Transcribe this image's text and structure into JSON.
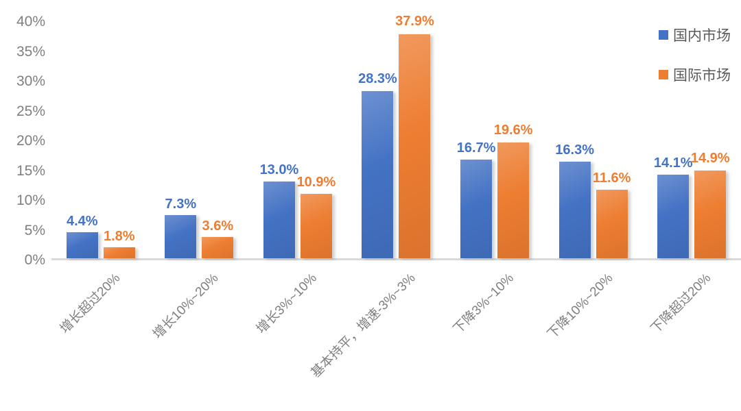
{
  "chart_data": {
    "type": "bar",
    "title": "",
    "categories": [
      "增长超过20%",
      "增长10%~20%",
      "增长3%~10%",
      "基本持平，增速-3%~3%",
      "下降3%~10%",
      "下降10%~20%",
      "下降超过20%"
    ],
    "series": [
      {
        "name": "国内市场",
        "color": "#4472C4",
        "values": [
          4.4,
          7.3,
          13.0,
          28.3,
          16.7,
          16.3,
          14.1
        ],
        "labels": [
          "4.4%",
          "7.3%",
          "13.0%",
          "28.3%",
          "16.7%",
          "16.3%",
          "14.1%"
        ]
      },
      {
        "name": "国际市场",
        "color": "#ED7D31",
        "values": [
          1.8,
          3.6,
          10.9,
          37.9,
          19.6,
          11.6,
          14.9
        ],
        "labels": [
          "1.8%",
          "3.6%",
          "10.9%",
          "37.9%",
          "19.6%",
          "11.6%",
          "14.9%"
        ]
      }
    ],
    "xlabel": "",
    "ylabel": "",
    "ylim": [
      0,
      40
    ],
    "ytick_step": 5,
    "yticks": [
      "0%",
      "5%",
      "10%",
      "15%",
      "20%",
      "25%",
      "30%",
      "35%",
      "40%"
    ],
    "grid": false,
    "legend_position": "top-right"
  },
  "colors": {
    "domestic_bar": "#4472C4",
    "international_bar": "#ED7D31",
    "axis_text": "#7F7F7F",
    "legend_text": "#595959",
    "baseline": "#D9D9D9",
    "background": "#FFFFFF"
  }
}
